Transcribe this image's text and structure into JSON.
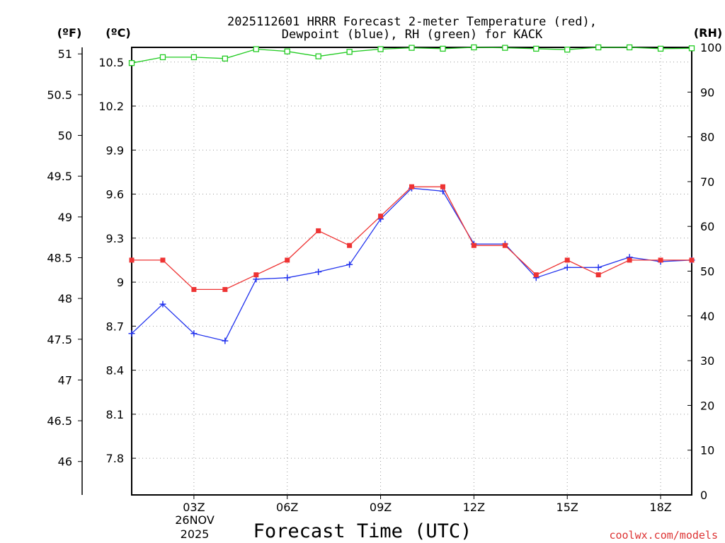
{
  "chart_data": {
    "type": "line",
    "title_line1": "2025112601 HRRR Forecast 2-meter Temperature (red),",
    "title_line2": "Dewpoint (blue), RH (green) for KACK",
    "unit_f": "(ºF)",
    "unit_c": "(ºC)",
    "unit_rh": "(RH)",
    "xlabel": "Forecast Time (UTC)",
    "date_label_1": "26NOV",
    "date_label_2": "2025",
    "watermark": "coolwx.com/models",
    "x_hours": [
      1,
      2,
      3,
      4,
      5,
      6,
      7,
      8,
      9,
      10,
      11,
      12,
      13,
      14,
      15,
      16,
      17,
      18,
      19
    ],
    "x_ticks": [
      {
        "hour": 3,
        "label": "03Z"
      },
      {
        "hour": 6,
        "label": "06Z"
      },
      {
        "hour": 9,
        "label": "09Z"
      },
      {
        "hour": 12,
        "label": "12Z"
      },
      {
        "hour": 15,
        "label": "15Z"
      },
      {
        "hour": 18,
        "label": "18Z"
      }
    ],
    "xlim": [
      1,
      19
    ],
    "ylim_c": [
      7.55,
      10.6
    ],
    "c_ticks": [
      "7.8",
      "8.1",
      "8.4",
      "8.7",
      "9",
      "9.3",
      "9.6",
      "9.9",
      "10.2",
      "10.5"
    ],
    "f_ticks": [
      "46",
      "46.5",
      "47",
      "47.5",
      "48",
      "48.5",
      "49",
      "49.5",
      "50",
      "50.5",
      "51"
    ],
    "ylim_rh": [
      0,
      100
    ],
    "rh_ticks": [
      "0",
      "10",
      "20",
      "30",
      "40",
      "50",
      "60",
      "70",
      "80",
      "90",
      "100"
    ],
    "series": [
      {
        "name": "Temperature",
        "color": "#ee3333",
        "marker": "square",
        "values": [
          9.15,
          9.15,
          8.95,
          8.95,
          9.05,
          9.15,
          9.35,
          9.25,
          9.45,
          9.65,
          9.65,
          9.25,
          9.25,
          9.05,
          9.15,
          9.05,
          9.15,
          9.15,
          9.15
        ]
      },
      {
        "name": "Dewpoint",
        "color": "#2233ee",
        "marker": "plus",
        "values": [
          8.65,
          8.85,
          8.65,
          8.6,
          9.02,
          9.03,
          9.07,
          9.12,
          9.43,
          9.64,
          9.62,
          9.26,
          9.26,
          9.03,
          9.1,
          9.1,
          9.17,
          9.14,
          9.15
        ]
      },
      {
        "name": "RH",
        "color": "#22cc22",
        "marker": "open-square",
        "axis": "rh",
        "values": [
          96.5,
          97.8,
          97.8,
          97.5,
          99.6,
          99.1,
          98.0,
          99.0,
          99.6,
          99.9,
          99.7,
          100,
          99.9,
          99.7,
          99.5,
          100,
          100,
          99.7,
          99.8
        ]
      }
    ]
  }
}
